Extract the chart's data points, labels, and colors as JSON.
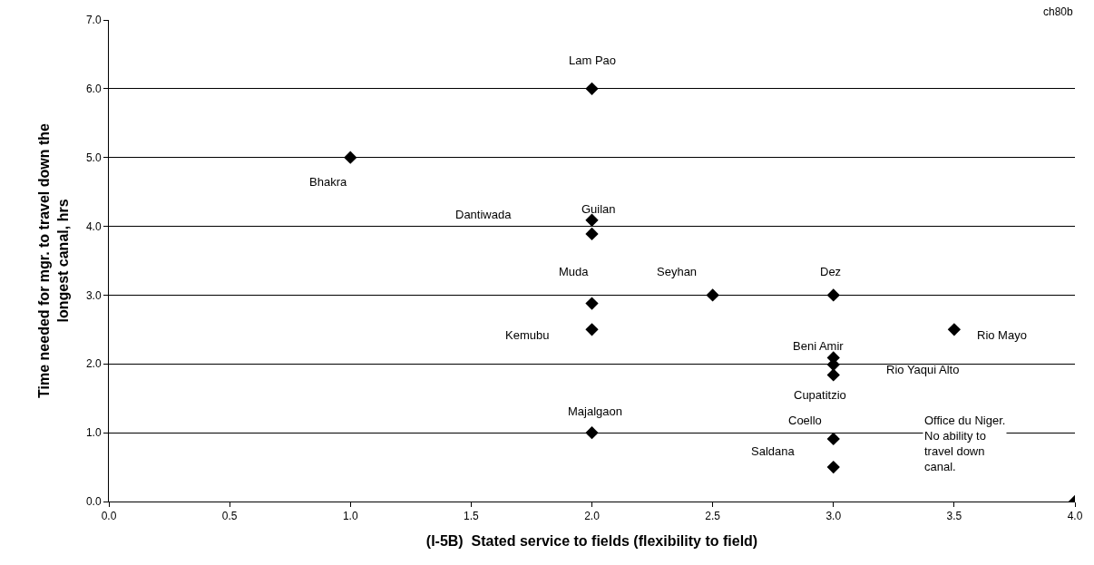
{
  "chart_data": {
    "type": "scatter",
    "xlabel": "(I-5B)  Stated service to fields (flexibility to field)",
    "ylabel": "Time needed for mgr. to travel down the\nlongest canal, hrs",
    "marker": "diamond",
    "grid": "y",
    "series": [
      {
        "color": "#000000",
        "x": [
          2,
          1,
          2,
          2,
          2,
          2.5,
          3,
          2,
          3.5,
          3,
          3,
          3,
          2,
          3,
          3,
          4
        ],
        "values": [
          6.0,
          5.0,
          4.09,
          3.89,
          2.88,
          3.0,
          3.0,
          2.5,
          2.5,
          2.09,
          1.99,
          1.84,
          1.0,
          0.91,
          0.5,
          0.0
        ]
      }
    ],
    "xlim": [
      0,
      4
    ],
    "xticks": [
      {
        "value": 0,
        "label": "0.0"
      },
      {
        "value": 0.5,
        "label": "0.5"
      },
      {
        "value": 1,
        "label": "1.0"
      },
      {
        "value": 1.5,
        "label": "1.5"
      },
      {
        "value": 2,
        "label": "2.0"
      },
      {
        "value": 2.5,
        "label": "2.5"
      },
      {
        "value": 3,
        "label": "3.0"
      },
      {
        "value": 3.5,
        "label": "3.5"
      },
      {
        "value": 4,
        "label": "4.0"
      }
    ],
    "ylim": [
      0,
      7
    ],
    "yticks": [
      {
        "value": 0,
        "label": "0.0"
      },
      {
        "value": 1,
        "label": "1.0"
      },
      {
        "value": 2,
        "label": "2.0"
      },
      {
        "value": 3,
        "label": "3.0"
      },
      {
        "value": 4,
        "label": "4.0"
      },
      {
        "value": 5,
        "label": "5.0"
      },
      {
        "value": 6,
        "label": "6.0"
      },
      {
        "value": 7,
        "label": "7.0"
      }
    ],
    "annotations": [
      {
        "text": "Lam Pao",
        "x": 2,
        "y": 6.0
      },
      {
        "text": "Bhakra",
        "x": 1,
        "y": 5.0
      },
      {
        "text": "Guilan",
        "x": 2,
        "y": 4.09
      },
      "Dantiwada",
      {
        "text": "Muda",
        "x": 2,
        "y": 2.88
      },
      {
        "text": "Seyhan",
        "x": 2.5,
        "y": 3.0
      },
      {
        "text": "Dez",
        "x": 3,
        "y": 3.0
      },
      "Kemubu",
      {
        "text": "Rio Mayo",
        "x": 3.5,
        "y": 2.5
      },
      {
        "text": "Beni Amir",
        "x": 3,
        "y": 2.09
      },
      "Rio Yaqui Alto",
      {
        "text": "Cupatitzio",
        "x": 3,
        "y": 1.84
      },
      {
        "text": "Majalgaon",
        "x": 2,
        "y": 1.0
      },
      {
        "text": "Coello",
        "x": 3,
        "y": 0.91
      },
      "Saldana",
      "Office du Niger.\nNo ability to\ntravel down\ncanal.",
      "ch80b"
    ]
  }
}
